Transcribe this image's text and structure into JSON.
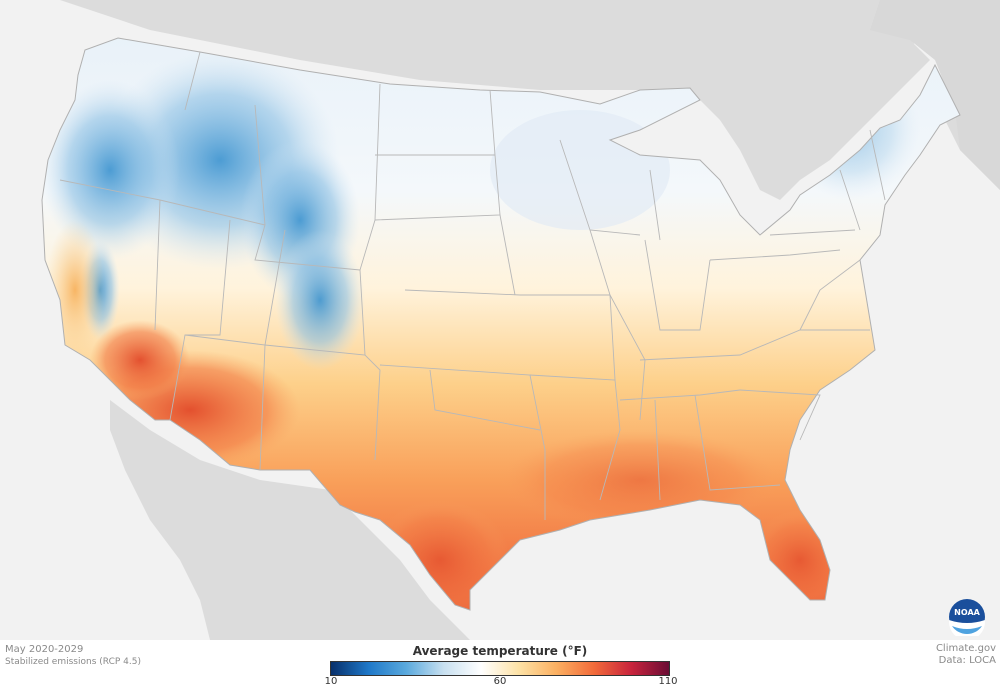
{
  "map": {
    "period": "May 2020-2029",
    "scenario": "Stabilized emissions (RCP 4.5)",
    "source_site": "Climate.gov",
    "data_source": "Data: LOCA",
    "logo_text": "NOAA"
  },
  "legend": {
    "title": "Average temperature (°F)",
    "ticks": [
      "10",
      "60",
      "110"
    ],
    "min_value": 10,
    "mid_value": 60,
    "max_value": 110,
    "gradient_colors": [
      "#08306b",
      "#1f78c8",
      "#5aa9dd",
      "#c8e0f0",
      "#ffffff",
      "#fde2a6",
      "#fbb062",
      "#f26b3a",
      "#c8243d",
      "#6b0d35"
    ]
  },
  "colors": {
    "land_other": "#dcdcdc",
    "water": "#f2f2f2",
    "state_border": "#b8b8b8"
  }
}
